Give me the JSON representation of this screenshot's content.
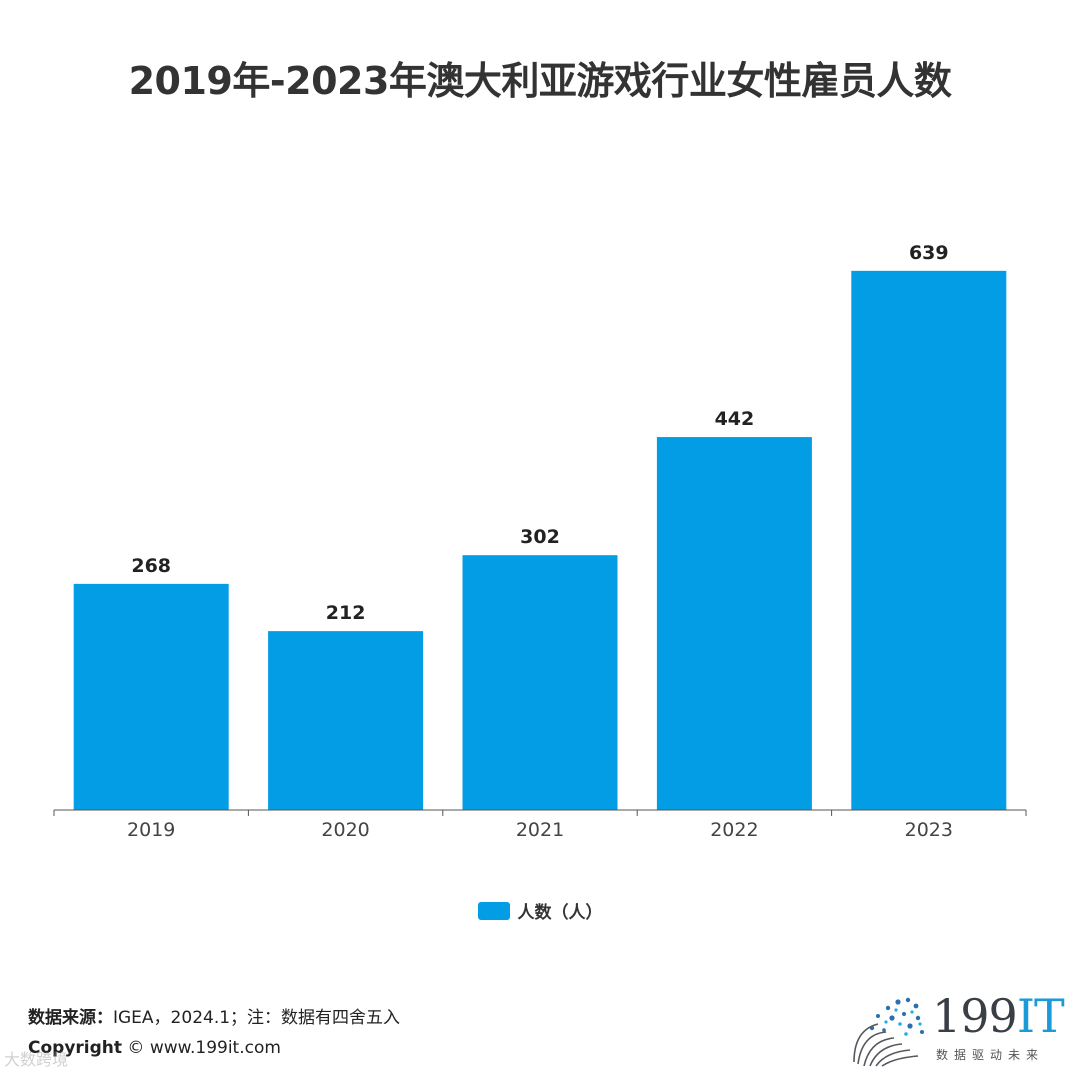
{
  "title": "2019年-2023年澳大利亚游戏行业女性雇员人数",
  "chart_data": {
    "type": "bar",
    "categories": [
      "2019",
      "2020",
      "2021",
      "2022",
      "2023"
    ],
    "series": [
      {
        "name": "人数（人）",
        "values": [
          268,
          212,
          302,
          442,
          639
        ]
      }
    ],
    "data_labels": [
      "268",
      "212",
      "302",
      "442",
      "639"
    ],
    "ylim": [
      0,
      640
    ],
    "grid": false,
    "legend_position": "bottom",
    "bar_color": "#039de6"
  },
  "legend": {
    "label": "人数（人）"
  },
  "footer": {
    "source_label": "数据来源：",
    "source_text": "IGEA，2024.1；注：数据有四舍五入",
    "copyright_label": "Copyright",
    "copyright_text": "© www.199it.com",
    "watermark": "大数跨境"
  },
  "logo": {
    "main_prefix": "199",
    "main_suffix": "IT",
    "tagline": "数据驱动未来"
  }
}
